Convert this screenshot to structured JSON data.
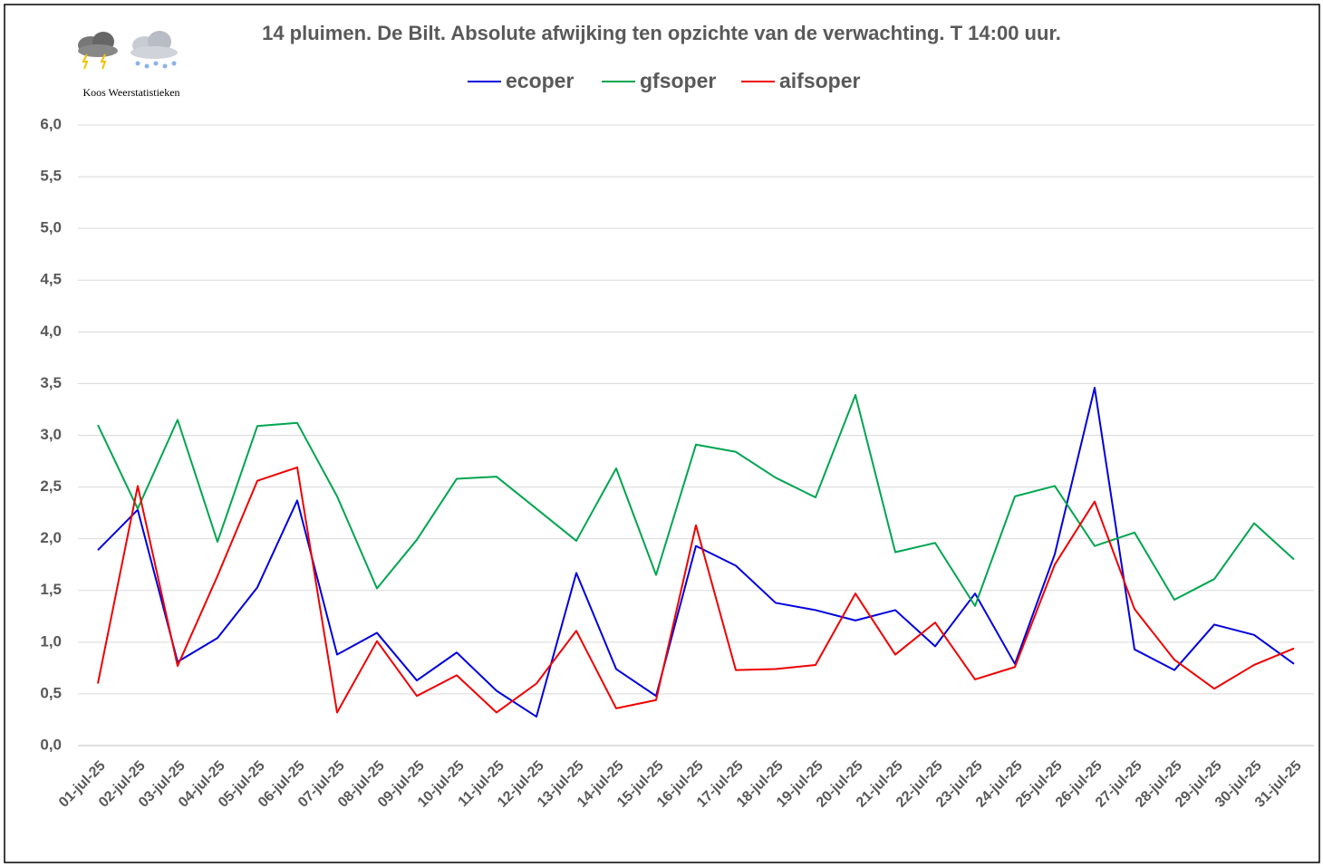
{
  "chart_data": {
    "type": "line",
    "title": "14 pluimen. De Bilt. Absolute afwijking ten opzichte van de verwachting. T 14:00 uur.",
    "annotations": [
      "Koos Weerstatistieken"
    ],
    "categories": [
      "01-jul-25",
      "02-jul-25",
      "03-jul-25",
      "04-jul-25",
      "05-jul-25",
      "06-jul-25",
      "07-jul-25",
      "08-jul-25",
      "09-jul-25",
      "10-jul-25",
      "11-jul-25",
      "12-jul-25",
      "13-jul-25",
      "14-jul-25",
      "15-jul-25",
      "16-jul-25",
      "17-jul-25",
      "18-jul-25",
      "19-jul-25",
      "20-jul-25",
      "21-jul-25",
      "22-jul-25",
      "23-jul-25",
      "24-jul-25",
      "25-jul-25",
      "26-jul-25",
      "27-jul-25",
      "28-jul-25",
      "29-jul-25",
      "30-jul-25",
      "31-jul-25"
    ],
    "series": [
      {
        "name": "ecoper",
        "color": "#0000dd",
        "values": [
          1.89,
          2.28,
          0.81,
          1.04,
          1.53,
          2.37,
          0.88,
          1.09,
          0.63,
          0.9,
          0.53,
          0.28,
          1.67,
          0.74,
          0.48,
          1.93,
          1.74,
          1.38,
          1.31,
          1.21,
          1.31,
          0.96,
          1.47,
          0.79,
          1.85,
          3.46,
          0.93,
          0.73,
          1.17,
          1.07,
          0.79
        ]
      },
      {
        "name": "gfsoper",
        "color": "#00a550",
        "values": [
          3.1,
          2.29,
          3.15,
          1.97,
          3.09,
          3.12,
          2.41,
          1.52,
          1.99,
          2.58,
          2.6,
          2.29,
          1.98,
          2.68,
          1.65,
          2.91,
          2.84,
          2.59,
          2.4,
          3.39,
          1.87,
          1.96,
          1.35,
          2.41,
          2.51,
          1.93,
          2.06,
          1.41,
          1.61,
          2.15,
          1.8
        ]
      },
      {
        "name": "aifsoper",
        "color": "#ee0000",
        "values": [
          0.6,
          2.51,
          0.77,
          1.64,
          2.56,
          2.69,
          0.32,
          1.01,
          0.48,
          0.68,
          0.32,
          0.6,
          1.11,
          0.36,
          0.44,
          2.13,
          0.73,
          0.74,
          0.78,
          1.47,
          0.88,
          1.19,
          0.64,
          0.76,
          1.75,
          2.36,
          1.32,
          0.83,
          0.55,
          0.78,
          0.94
        ]
      }
    ],
    "ylim": [
      0,
      6
    ],
    "yticks": [
      {
        "value": 0,
        "label": "0,0"
      },
      {
        "value": 0.5,
        "label": "0,5"
      },
      {
        "value": 1,
        "label": "1,0"
      },
      {
        "value": 1.5,
        "label": "1,5"
      },
      {
        "value": 2,
        "label": "2,0"
      },
      {
        "value": 2.5,
        "label": "2,5"
      },
      {
        "value": 3,
        "label": "3,0"
      },
      {
        "value": 3.5,
        "label": "3,5"
      },
      {
        "value": 4,
        "label": "4,0"
      },
      {
        "value": 4.5,
        "label": "4,5"
      },
      {
        "value": 5,
        "label": "5,0"
      },
      {
        "value": 5.5,
        "label": "5,5"
      },
      {
        "value": 6,
        "label": "6,0"
      }
    ],
    "grid": true,
    "legend": "top"
  }
}
